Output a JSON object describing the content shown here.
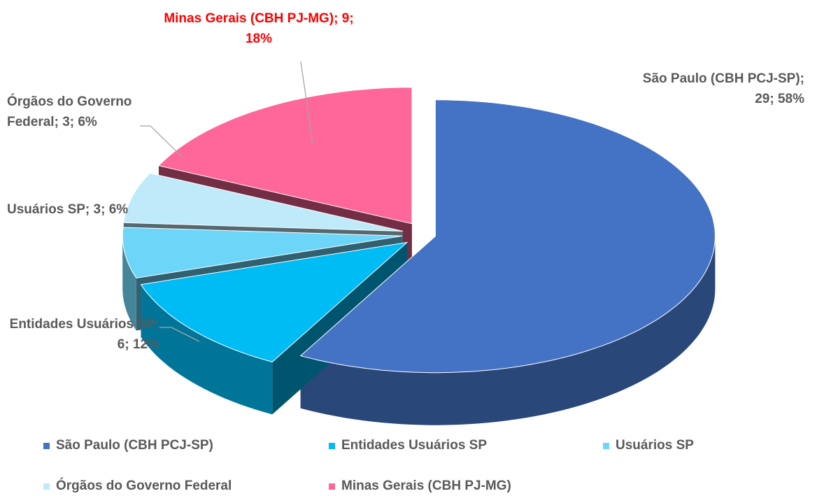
{
  "chart_data": {
    "type": "pie",
    "categories": [
      "São Paulo (CBH PCJ-SP)",
      "Entidades Usuários SP",
      "Usuários SP",
      "Órgãos do Governo Federal",
      "Minas Gerais (CBH PJ-MG)"
    ],
    "values": [
      29,
      6,
      3,
      3,
      9
    ],
    "value_labels": [
      "São Paulo (CBH PCJ-SP); 29; 58%",
      "Entidades Usuários SP; 6; 12%",
      "Usuários SP; 3; 6%",
      "Órgãos do Governo Federal; 3; 6%",
      "Minas Gerais (CBH PJ-MG); 9; 18%"
    ],
    "colors": [
      "#4472c4",
      "#00bcf5",
      "#6dd6f8",
      "#bfeafa",
      "#ff6699"
    ],
    "label_colors": [
      "#595959",
      "#595959",
      "#595959",
      "#595959",
      "#ff0000"
    ],
    "legend": "bottom"
  }
}
